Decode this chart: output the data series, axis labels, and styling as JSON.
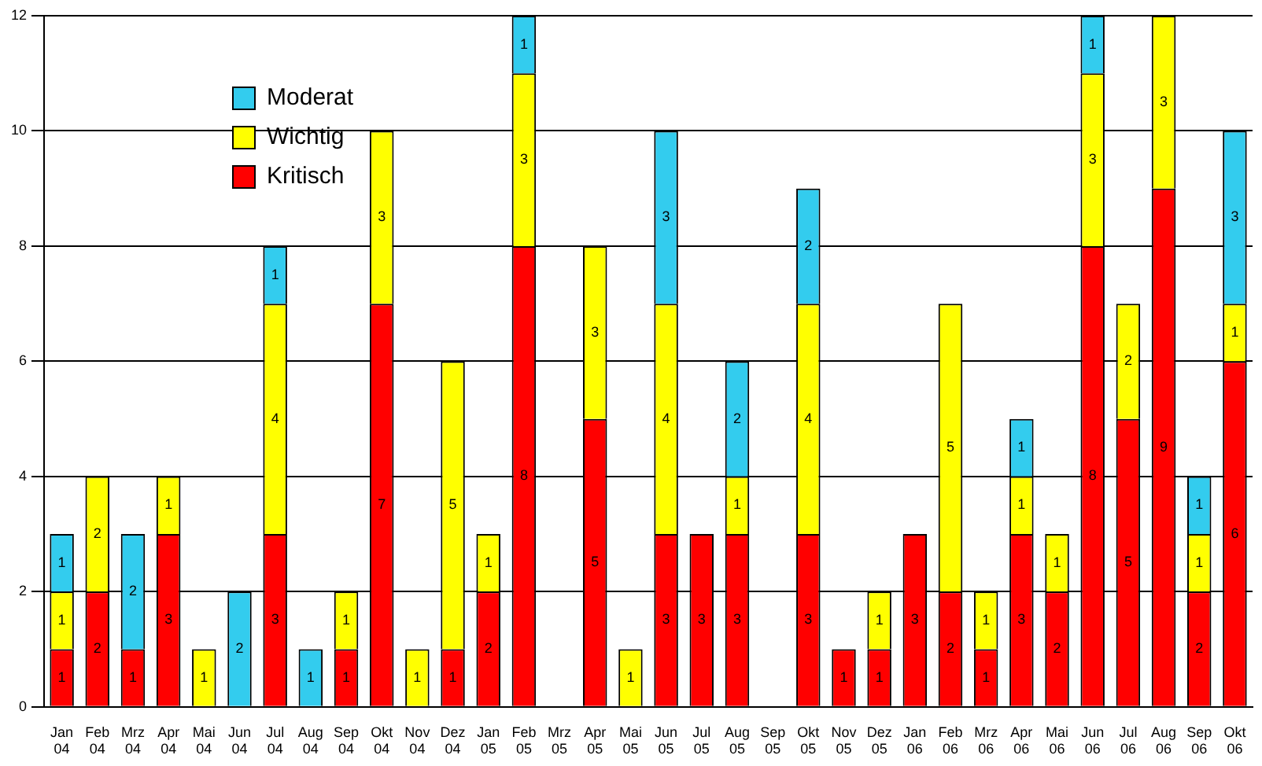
{
  "chart_data": {
    "type": "bar",
    "stacked": true,
    "categories": [
      "Jan 04",
      "Feb 04",
      "Mrz 04",
      "Apr 04",
      "Mai 04",
      "Jun 04",
      "Jul 04",
      "Aug 04",
      "Sep 04",
      "Okt 04",
      "Nov 04",
      "Dez 04",
      "Jan 05",
      "Feb 05",
      "Mrz 05",
      "Apr 05",
      "Mai 05",
      "Jun 05",
      "Jul 05",
      "Aug 05",
      "Sep 05",
      "Okt 05",
      "Nov 05",
      "Dez 05",
      "Jan 06",
      "Feb 06",
      "Mrz 06",
      "Apr 06",
      "Mai 06",
      "Jun 06",
      "Jul 06",
      "Aug 06",
      "Sep 06",
      "Okt 06"
    ],
    "series": [
      {
        "name": "Kritisch",
        "color": "#ff0000",
        "values": [
          1,
          2,
          1,
          3,
          null,
          null,
          3,
          null,
          1,
          7,
          null,
          1,
          2,
          8,
          null,
          5,
          null,
          3,
          3,
          3,
          null,
          3,
          1,
          1,
          3,
          2,
          1,
          3,
          2,
          8,
          5,
          9,
          2,
          6
        ]
      },
      {
        "name": "Wichtig",
        "color": "#ffff00",
        "values": [
          1,
          2,
          null,
          1,
          1,
          null,
          4,
          null,
          1,
          3,
          1,
          5,
          1,
          3,
          null,
          3,
          1,
          4,
          null,
          1,
          null,
          4,
          null,
          1,
          null,
          5,
          1,
          1,
          1,
          3,
          2,
          3,
          1,
          1
        ]
      },
      {
        "name": "Moderat",
        "color": "#33ccee",
        "values": [
          1,
          null,
          2,
          null,
          null,
          2,
          1,
          1,
          null,
          null,
          null,
          null,
          null,
          1,
          null,
          null,
          null,
          3,
          null,
          2,
          null,
          2,
          null,
          null,
          null,
          null,
          null,
          1,
          null,
          1,
          null,
          null,
          1,
          3
        ]
      }
    ],
    "ylim": [
      0,
      12
    ],
    "yticks": [
      0,
      2,
      4,
      6,
      8,
      10,
      12
    ],
    "grid": "y",
    "legend": "top left",
    "data_labels": true
  }
}
